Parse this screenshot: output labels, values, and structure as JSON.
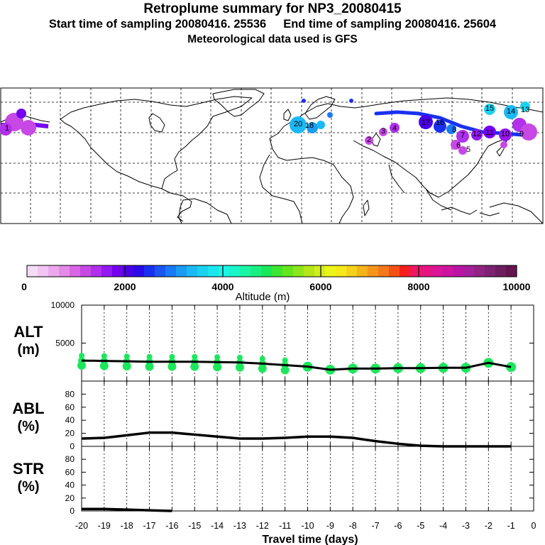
{
  "header": {
    "title": "Retroplume summary for NP3_20080415",
    "start_sampling": "Start time of sampling 20080416. 25536",
    "end_sampling": "End time of sampling 20080416. 25604",
    "met_data": "Meteorological data used is GFS"
  },
  "map": {
    "plume_labels": [
      "20",
      "18",
      "17",
      "16",
      "15",
      "14",
      "13",
      "12",
      "11",
      "10",
      "9",
      "8",
      "7",
      "6",
      "5",
      "4",
      "3",
      "2",
      "1"
    ]
  },
  "colorbar": {
    "tick_labels": [
      "0",
      "2000",
      "4000",
      "6000",
      "8000",
      "10000"
    ],
    "title": "Altitude (m)",
    "colors": [
      "#f5dcf5",
      "#f2c5f2",
      "#eda8ed",
      "#e48ae8",
      "#d965e6",
      "#c848e6",
      "#b030ec",
      "#9418f0",
      "#7400f0",
      "#4a00e6",
      "#2a0ae6",
      "#1a30f0",
      "#1a55f0",
      "#1a7af5",
      "#1a9cf5",
      "#1ab9f5",
      "#1ad2f0",
      "#1ae6f0",
      "#1af5e6",
      "#1af5c8",
      "#1af5a5",
      "#1af082",
      "#1ae85a",
      "#3ce632",
      "#64e61a",
      "#8ce61a",
      "#b4e61a",
      "#d2ee1a",
      "#ecf51a",
      "#f5ea1a",
      "#f5d21a",
      "#f5b41a",
      "#f5961a",
      "#f5781a",
      "#f55014",
      "#f51e1e",
      "#f01464",
      "#e61482",
      "#dc1496",
      "#cd14a0",
      "#b914a5",
      "#a51e9b",
      "#912382",
      "#7d2373",
      "#6e1e5f",
      "#641450"
    ]
  },
  "chart_data": [
    {
      "type": "line+scatter",
      "panel": "ALT",
      "ylabel": "ALT\n(m)",
      "ylim": [
        0,
        10000
      ],
      "yticks": [
        "10000",
        "5000"
      ],
      "x": [
        -20,
        -19,
        -18,
        -17,
        -16,
        -15,
        -14,
        -13,
        -12,
        -11,
        -10,
        -9,
        -8,
        -7,
        -6,
        -5,
        -4,
        -3,
        -2,
        -1
      ],
      "median_altitude": [
        2700,
        2650,
        2600,
        2550,
        2550,
        2550,
        2500,
        2450,
        2300,
        2100,
        1900,
        1500,
        1650,
        1650,
        1700,
        1700,
        1750,
        1750,
        2400,
        1850
      ],
      "plume_dots_color": "#1ae85a"
    },
    {
      "type": "line",
      "panel": "ABL",
      "ylabel": "ABL\n(%)",
      "ylim": [
        0,
        100
      ],
      "yticks": [
        "80",
        "60",
        "40",
        "20",
        "0"
      ],
      "x": [
        -20,
        -19,
        -18,
        -17,
        -16,
        -15,
        -14,
        -13,
        -12,
        -11,
        -10,
        -9,
        -8,
        -7,
        -6,
        -5,
        -4,
        -3,
        -2,
        -1
      ],
      "values": [
        12,
        13,
        17,
        21,
        21,
        18,
        15,
        12,
        12,
        13,
        15,
        15,
        13,
        8,
        4,
        1,
        0,
        0,
        0,
        0
      ]
    },
    {
      "type": "line",
      "panel": "STR",
      "ylabel": "STR\n(%)",
      "ylim": [
        0,
        100
      ],
      "yticks": [
        "80",
        "60",
        "40",
        "20",
        "0"
      ],
      "x": [
        -20,
        -19,
        -18,
        -17,
        -16
      ],
      "values": [
        3,
        3,
        2,
        1,
        0
      ],
      "xlabel": "Travel time (days)",
      "xtick_labels": [
        "-20",
        "-19",
        "-18",
        "-17",
        "-16",
        "-15",
        "-14",
        "-13",
        "-12",
        "-11",
        "-10",
        "-9",
        "-8",
        "-7",
        "-6",
        "-5",
        "-4",
        "-3",
        "-2",
        "-1",
        "0"
      ]
    }
  ]
}
